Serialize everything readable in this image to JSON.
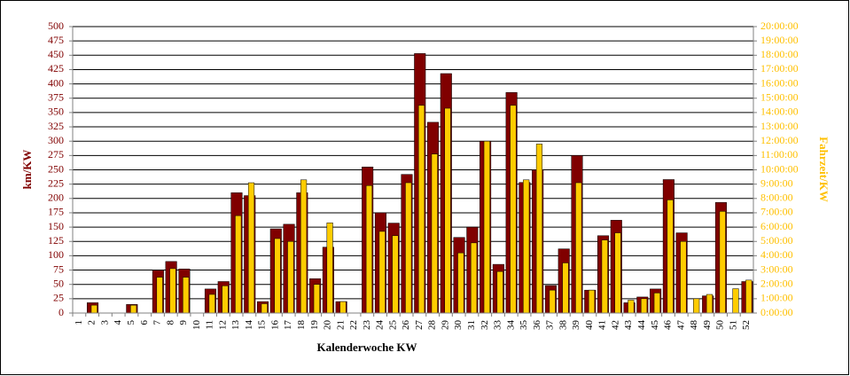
{
  "chart_data": {
    "type": "bar",
    "x_label": "Kalenderwoche KW",
    "y_label": "km/KW",
    "y2_label": "Fahrzeit/KW",
    "categories": [
      "1",
      "2",
      "3",
      "4",
      "5",
      "6",
      "7",
      "8",
      "9",
      "10",
      "11",
      "12",
      "13",
      "14",
      "15",
      "16",
      "17",
      "18",
      "19",
      "20",
      "21",
      "22",
      "23",
      "24",
      "25",
      "26",
      "27",
      "28",
      "29",
      "30",
      "31",
      "32",
      "33",
      "34",
      "35",
      "36",
      "37",
      "38",
      "39",
      "40",
      "41",
      "42",
      "43",
      "44",
      "45",
      "46",
      "47",
      "48",
      "49",
      "50",
      "51",
      "52"
    ],
    "series": [
      {
        "name": "km/KW",
        "color": "#800000",
        "axis": "y",
        "values": [
          0,
          18,
          0,
          0,
          15,
          0,
          75,
          90,
          77,
          0,
          42,
          55,
          210,
          205,
          20,
          147,
          155,
          210,
          60,
          115,
          20,
          0,
          255,
          175,
          157,
          242,
          453,
          333,
          418,
          132,
          150,
          300,
          85,
          385,
          228,
          250,
          48,
          112,
          275,
          40,
          135,
          162,
          18,
          28,
          42,
          233,
          140,
          0,
          30,
          193,
          0,
          55
        ]
      },
      {
        "name": "Fahrzeit/KW",
        "color": "#ffcc00",
        "axis": "y2",
        "values": [
          0,
          0.55,
          0,
          0,
          0.55,
          0,
          2.5,
          3.1,
          2.5,
          0,
          1.3,
          1.9,
          6.8,
          9.1,
          0.65,
          5.2,
          5,
          9.3,
          2,
          6.3,
          0.8,
          0,
          8.9,
          5.7,
          5.4,
          9.1,
          14.5,
          11.1,
          14.3,
          4.2,
          4.9,
          12,
          2.9,
          14.5,
          9.3,
          11.8,
          1.6,
          3.5,
          9.1,
          1.6,
          5.1,
          5.6,
          0.9,
          1,
          1.4,
          7.9,
          5,
          1,
          1.3,
          7.1,
          1.7,
          2.3
        ]
      }
    ],
    "ylim": [
      0,
      500
    ],
    "yticks": [
      0,
      25,
      50,
      75,
      100,
      125,
      150,
      175,
      200,
      225,
      250,
      275,
      300,
      325,
      350,
      375,
      400,
      425,
      450,
      475,
      500
    ],
    "y2lim": [
      0,
      20
    ],
    "y2ticks": [
      {
        "value": 0,
        "label": "0:00:00"
      },
      {
        "value": 1,
        "label": "1:00:00"
      },
      {
        "value": 2,
        "label": "2:00:00"
      },
      {
        "value": 3,
        "label": "3:00:00"
      },
      {
        "value": 4,
        "label": "4:00:00"
      },
      {
        "value": 5,
        "label": "5:00:00"
      },
      {
        "value": 6,
        "label": "6:00:00"
      },
      {
        "value": 7,
        "label": "7:00:00"
      },
      {
        "value": 8,
        "label": "8:00:00"
      },
      {
        "value": 9,
        "label": "9:00:00"
      },
      {
        "value": 10,
        "label": "10:00:00"
      },
      {
        "value": 11,
        "label": "11:00:00"
      },
      {
        "value": 12,
        "label": "12:00:00"
      },
      {
        "value": 13,
        "label": "13:00:00"
      },
      {
        "value": 14,
        "label": "14:00:00"
      },
      {
        "value": 15,
        "label": "15:00:00"
      },
      {
        "value": 16,
        "label": "16:00:00"
      },
      {
        "value": 17,
        "label": "17:00:00"
      },
      {
        "value": 18,
        "label": "18:00:00"
      },
      {
        "value": 19,
        "label": "19:00:00"
      },
      {
        "value": 20,
        "label": "20:00:00"
      }
    ],
    "grid": true
  }
}
